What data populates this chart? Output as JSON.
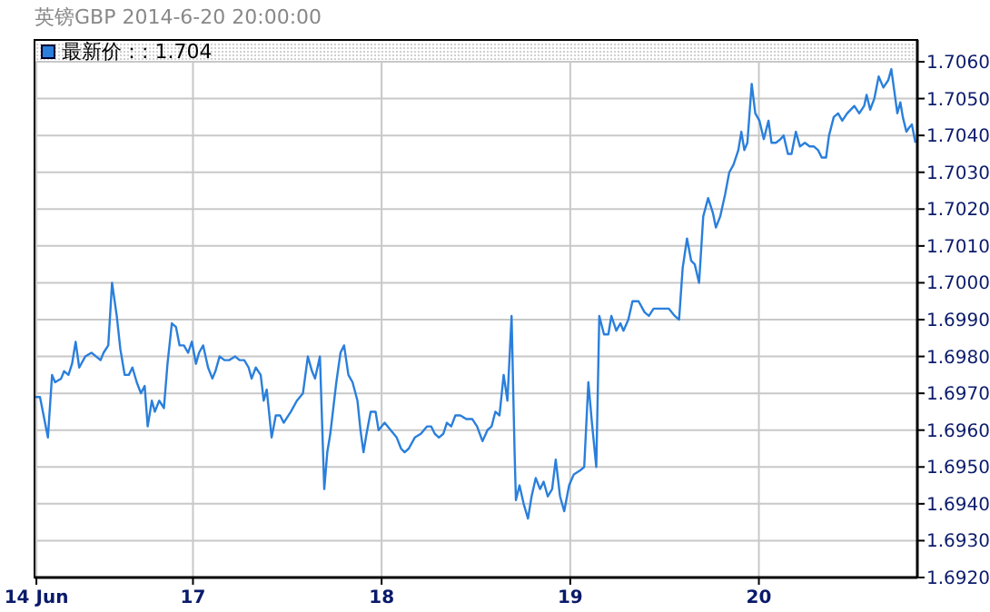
{
  "chart_data": {
    "type": "line",
    "title": "英镑GBP 2014-6-20 20:00:00",
    "xlim": [
      16.16,
      20.84
    ],
    "xticks": [
      {
        "value": 16.17,
        "label": "14 Jun"
      },
      17,
      18,
      19,
      20
    ],
    "ylim": [
      1.692,
      1.706
    ],
    "yticks": [
      {
        "value": 1.692,
        "label": "1.6920"
      },
      {
        "value": 1.693,
        "label": "1.6930"
      },
      {
        "value": 1.694,
        "label": "1.6940"
      },
      {
        "value": 1.695,
        "label": "1.6950"
      },
      {
        "value": 1.696,
        "label": "1.6960"
      },
      {
        "value": 1.697,
        "label": "1.6970"
      },
      {
        "value": 1.698,
        "label": "1.6980"
      },
      {
        "value": 1.699,
        "label": "1.6990"
      },
      {
        "value": 1.7,
        "label": "1.7000"
      },
      {
        "value": 1.701,
        "label": "1.7010"
      },
      {
        "value": 1.702,
        "label": "1.7020"
      },
      {
        "value": 1.703,
        "label": "1.7030"
      },
      {
        "value": 1.704,
        "label": "1.7040"
      },
      {
        "value": 1.705,
        "label": "1.7050"
      },
      {
        "value": 1.706,
        "label": "1.7060"
      }
    ],
    "grid": true,
    "legend": "top left",
    "marker": "none",
    "line_style": "solid",
    "x": [
      16.163,
      16.189,
      16.231,
      16.253,
      16.269,
      16.301,
      16.317,
      16.34,
      16.359,
      16.378,
      16.397,
      16.429,
      16.462,
      16.487,
      16.51,
      16.526,
      16.551,
      16.571,
      16.596,
      16.615,
      16.638,
      16.66,
      16.679,
      16.702,
      16.724,
      16.744,
      16.76,
      16.782,
      16.798,
      16.821,
      16.846,
      16.865,
      16.888,
      16.91,
      16.929,
      16.952,
      16.974,
      16.994,
      17.016,
      17.032,
      17.054,
      17.08,
      17.103,
      17.119,
      17.141,
      17.167,
      17.192,
      17.224,
      17.247,
      17.272,
      17.295,
      17.311,
      17.333,
      17.359,
      17.375,
      17.391,
      17.417,
      17.439,
      17.462,
      17.481,
      17.519,
      17.551,
      17.583,
      17.609,
      17.631,
      17.647,
      17.673,
      17.696,
      17.712,
      17.728,
      17.76,
      17.782,
      17.801,
      17.824,
      17.846,
      17.872,
      17.888,
      17.904,
      17.92,
      17.942,
      17.968,
      17.984,
      18.016,
      18.048,
      18.08,
      18.103,
      18.122,
      18.144,
      18.176,
      18.208,
      18.24,
      18.263,
      18.282,
      18.304,
      18.327,
      18.346,
      18.369,
      18.391,
      18.417,
      18.449,
      18.481,
      18.506,
      18.535,
      18.561,
      18.583,
      18.603,
      18.625,
      18.647,
      18.667,
      18.689,
      18.705,
      18.712,
      18.731,
      18.753,
      18.776,
      18.795,
      18.817,
      18.84,
      18.859,
      18.881,
      18.904,
      18.923,
      18.946,
      18.968,
      18.994,
      19.019,
      19.051,
      19.074,
      19.096,
      19.115,
      19.138,
      19.154,
      19.179,
      19.202,
      19.218,
      19.244,
      19.266,
      19.282,
      19.308,
      19.33,
      19.362,
      19.394,
      19.417,
      19.442,
      19.49,
      19.522,
      19.554,
      19.577,
      19.596,
      19.619,
      19.641,
      19.66,
      19.683,
      19.705,
      19.731,
      19.756,
      19.772,
      19.795,
      19.821,
      19.843,
      19.865,
      19.891,
      19.907,
      19.923,
      19.939,
      19.962,
      19.981,
      20.003,
      20.026,
      20.051,
      20.067,
      20.09,
      20.115,
      20.131,
      20.154,
      20.173,
      20.196,
      20.218,
      20.244,
      20.269,
      20.292,
      20.314,
      20.333,
      20.356,
      20.372,
      20.397,
      20.42,
      20.442,
      20.468,
      20.506,
      20.532,
      20.558,
      20.571,
      20.59,
      20.612,
      20.635,
      20.66,
      20.686,
      20.702,
      20.718,
      20.734,
      20.75,
      20.763,
      20.782,
      20.795,
      20.811,
      20.83
    ],
    "series": [
      {
        "name": "最新价：: 1.704",
        "color": "#2a7fdc",
        "values": [
          1.6969,
          1.6969,
          1.6958,
          1.6975,
          1.6973,
          1.6974,
          1.6976,
          1.6975,
          1.6978,
          1.6984,
          1.6977,
          1.698,
          1.6981,
          1.698,
          1.6979,
          1.6981,
          1.6983,
          1.7,
          1.6991,
          1.6982,
          1.6975,
          1.6975,
          1.6977,
          1.6973,
          1.697,
          1.6972,
          1.6961,
          1.6968,
          1.6965,
          1.6968,
          1.6966,
          1.6978,
          1.6989,
          1.6988,
          1.6983,
          1.6983,
          1.6981,
          1.6984,
          1.6978,
          1.6981,
          1.6983,
          1.6977,
          1.6974,
          1.6976,
          1.698,
          1.6979,
          1.6979,
          1.698,
          1.6979,
          1.6979,
          1.6977,
          1.6974,
          1.6977,
          1.6975,
          1.6968,
          1.6971,
          1.6958,
          1.6964,
          1.6964,
          1.6962,
          1.6965,
          1.6968,
          1.697,
          1.698,
          1.6976,
          1.6974,
          1.698,
          1.6944,
          1.6954,
          1.6959,
          1.6973,
          1.6981,
          1.6983,
          1.6975,
          1.6973,
          1.6968,
          1.696,
          1.6954,
          1.6959,
          1.6965,
          1.6965,
          1.696,
          1.6962,
          1.696,
          1.6958,
          1.6955,
          1.6954,
          1.6955,
          1.6958,
          1.6959,
          1.6961,
          1.6961,
          1.6959,
          1.6958,
          1.6959,
          1.6962,
          1.6961,
          1.6964,
          1.6964,
          1.6963,
          1.6963,
          1.6961,
          1.6957,
          1.696,
          1.6961,
          1.6965,
          1.6964,
          1.6975,
          1.6968,
          1.6991,
          1.6954,
          1.6941,
          1.6945,
          1.694,
          1.6936,
          1.6942,
          1.6947,
          1.6944,
          1.6946,
          1.6942,
          1.6944,
          1.6952,
          1.6942,
          1.6938,
          1.6945,
          1.6948,
          1.6949,
          1.695,
          1.6973,
          1.6962,
          1.695,
          1.6991,
          1.6986,
          1.6986,
          1.6991,
          1.6987,
          1.6989,
          1.6987,
          1.699,
          1.6995,
          1.6995,
          1.6992,
          1.6991,
          1.6993,
          1.6993,
          1.6993,
          1.6991,
          1.699,
          1.7004,
          1.7012,
          1.7006,
          1.7005,
          1.7,
          1.7018,
          1.7023,
          1.7019,
          1.7015,
          1.7018,
          1.7024,
          1.703,
          1.7032,
          1.7036,
          1.7041,
          1.7036,
          1.7038,
          1.7054,
          1.7046,
          1.7044,
          1.7039,
          1.7044,
          1.7038,
          1.7038,
          1.7039,
          1.704,
          1.7035,
          1.7035,
          1.7041,
          1.7037,
          1.7038,
          1.7037,
          1.7037,
          1.7036,
          1.7034,
          1.7034,
          1.704,
          1.7045,
          1.7046,
          1.7044,
          1.7046,
          1.7048,
          1.7046,
          1.7048,
          1.7051,
          1.7047,
          1.705,
          1.7056,
          1.7053,
          1.7055,
          1.7058,
          1.7052,
          1.7046,
          1.7049,
          1.7045,
          1.7041,
          1.7042,
          1.7043,
          1.7038
        ]
      }
    ]
  }
}
